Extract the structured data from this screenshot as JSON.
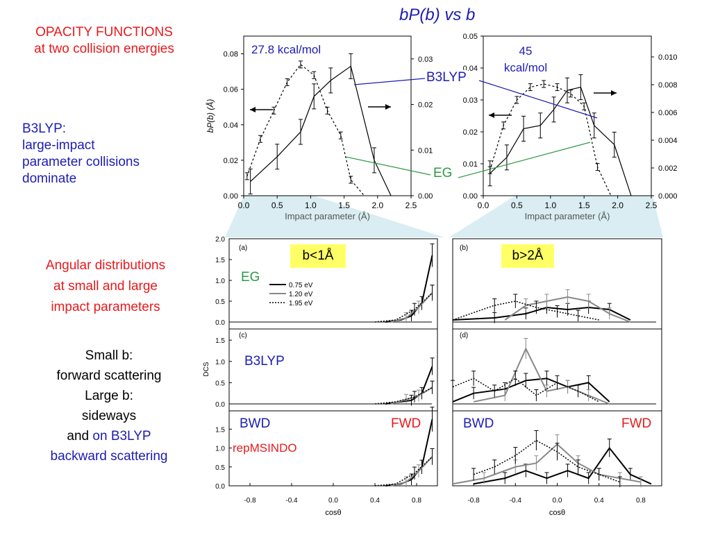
{
  "title": "bP(b) vs b",
  "left": {
    "opacity_title_line1": "OPACITY FUNCTIONS",
    "opacity_title_line2": "at two collision energies",
    "b3lyp_line1": "B3LYP:",
    "b3lyp_line2": "large-impact",
    "b3lyp_line3": "parameter collisions",
    "b3lyp_line4": "dominate",
    "angular_line1": "Angular distributions",
    "angular_line2": "at small and large",
    "angular_line3": "impact parameters",
    "small_line1": "Small b:",
    "small_line2": "forward scattering",
    "small_line3": "Large b:",
    "small_line4": "sideways",
    "small_line5a": "and ",
    "small_line5b": "on B3LYP",
    "small_line6": "backward scattering"
  },
  "annotations": {
    "energy1": "27.8 kcal/mol",
    "energy2_line1": "45",
    "energy2_line2": "kcal/mol",
    "b3lyp": "B3LYP",
    "eg": "EG",
    "b_small": "b<1Å",
    "b_large": "b>2Å",
    "panel_eg": "EG",
    "panel_b3lyp": "B3LYP",
    "bwd1": "BWD",
    "fwd1": "FWD",
    "bwd2": "BWD",
    "fwd2": "FWD",
    "repmsindo": "repMSINDO"
  },
  "colors": {
    "red": "#e8191c",
    "blue": "#1c1cb4",
    "green": "#2e9a44",
    "highlight": "#ffff66"
  },
  "chart_data": [
    {
      "type": "line",
      "name": "opacity-27.8",
      "xlabel": "Impact parameter (Å)",
      "ylabel": "bP(b) (Å)",
      "xlim": [
        0,
        2.5
      ],
      "ylim": [
        0,
        0.09
      ],
      "ylim_right": [
        0,
        0.035
      ],
      "xticks": [
        "0.0",
        "0.5",
        "1.0",
        "1.5",
        "2.0",
        "2.5"
      ],
      "yticks": [
        "0.00",
        "0.02",
        "0.04",
        "0.06",
        "0.08"
      ],
      "yticks_right": [
        "0.00",
        "0.01",
        "0.02",
        "0.03"
      ],
      "series": [
        {
          "style": "solid",
          "x": [
            0.1,
            0.5,
            0.85,
            1.05,
            1.3,
            1.6,
            1.95,
            2.2
          ],
          "y": [
            0.008,
            0.022,
            0.036,
            0.056,
            0.065,
            0.073,
            0.02,
            0.0
          ]
        },
        {
          "style": "dashed",
          "x": [
            0.05,
            0.25,
            0.45,
            0.65,
            0.85,
            1.05,
            1.25,
            1.45,
            1.6,
            1.8
          ],
          "y": [
            0.011,
            0.032,
            0.048,
            0.064,
            0.074,
            0.068,
            0.048,
            0.034,
            0.009,
            0.0
          ]
        }
      ]
    },
    {
      "type": "line",
      "name": "opacity-45",
      "xlabel": "Impact parameter (Å)",
      "xlim": [
        0,
        2.5
      ],
      "ylim": [
        0,
        0.05
      ],
      "ylim_right": [
        0,
        0.0115
      ],
      "xticks": [
        "0.0",
        "0.5",
        "1.0",
        "1.5",
        "2.0",
        "2.5"
      ],
      "yticks": [
        "0.00",
        "0.01",
        "0.02",
        "0.03",
        "0.04",
        "0.05"
      ],
      "yticks_right": [
        "0.000",
        "0.002",
        "0.004",
        "0.006",
        "0.008",
        "0.010"
      ],
      "series": [
        {
          "style": "solid",
          "x": [
            0.1,
            0.35,
            0.6,
            0.85,
            1.05,
            1.25,
            1.45,
            1.65,
            1.95,
            2.2
          ],
          "y": [
            0.007,
            0.012,
            0.021,
            0.022,
            0.027,
            0.033,
            0.034,
            0.022,
            0.016,
            0.0
          ]
        },
        {
          "style": "dashed",
          "x": [
            0.1,
            0.3,
            0.5,
            0.7,
            0.9,
            1.1,
            1.3,
            1.5,
            1.7,
            1.9
          ],
          "y": [
            0.008,
            0.022,
            0.03,
            0.034,
            0.035,
            0.034,
            0.032,
            0.028,
            0.009,
            0.0
          ]
        }
      ]
    },
    {
      "type": "line",
      "name": "dcs-panels",
      "xlabel": "cosθ",
      "ylabel": "DCS",
      "xlim": [
        -1,
        1
      ],
      "xticks": [
        "-0.8",
        "-0.4",
        "0.0",
        "0.4",
        "0.8"
      ],
      "yticks": [
        "0.0",
        "0.5",
        "1.0",
        "1.5",
        "2.0"
      ],
      "legend": [
        "0.75 eV",
        "1.20 eV",
        "1.95 eV"
      ],
      "panels": [
        "(a)",
        "(b)",
        "(c)",
        "(d)"
      ]
    }
  ]
}
